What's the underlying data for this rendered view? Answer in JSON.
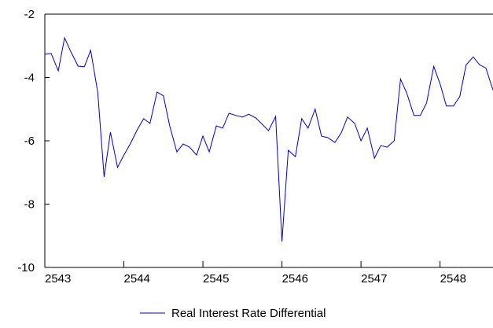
{
  "chart_data": {
    "type": "line",
    "x": [
      2543.0,
      2543.08,
      2543.17,
      2543.25,
      2543.33,
      2543.42,
      2543.5,
      2543.58,
      2543.67,
      2543.75,
      2543.83,
      2543.92,
      2544.0,
      2544.08,
      2544.17,
      2544.25,
      2544.33,
      2544.42,
      2544.5,
      2544.58,
      2544.67,
      2544.75,
      2544.83,
      2544.92,
      2545.0,
      2545.08,
      2545.17,
      2545.25,
      2545.33,
      2545.42,
      2545.5,
      2545.58,
      2545.67,
      2545.75,
      2545.83,
      2545.92,
      2546.0,
      2546.08,
      2546.17,
      2546.25,
      2546.33,
      2546.42,
      2546.5,
      2546.58,
      2546.67,
      2546.75,
      2546.83,
      2546.92,
      2547.0,
      2547.08,
      2547.17,
      2547.25,
      2547.33,
      2547.42,
      2547.5,
      2547.58,
      2547.67,
      2547.75,
      2547.83,
      2547.92,
      2548.0,
      2548.08,
      2548.17,
      2548.25,
      2548.33,
      2548.42,
      2548.5,
      2548.58,
      2548.67
    ],
    "series": [
      {
        "name": "Real Interest Rate Differential",
        "color": "#0000cc",
        "values": [
          -3.27,
          -3.24,
          -3.79,
          -2.75,
          -3.19,
          -3.64,
          -3.66,
          -3.14,
          -4.48,
          -7.14,
          -5.73,
          -6.84,
          -6.45,
          -6.1,
          -5.65,
          -5.3,
          -5.45,
          -4.46,
          -4.58,
          -5.53,
          -6.35,
          -6.1,
          -6.2,
          -6.45,
          -5.85,
          -6.35,
          -5.53,
          -5.6,
          -5.13,
          -5.2,
          -5.25,
          -5.16,
          -5.28,
          -5.48,
          -5.68,
          -5.23,
          -9.18,
          -6.3,
          -6.5,
          -5.3,
          -5.6,
          -5.0,
          -5.85,
          -5.9,
          -6.05,
          -5.75,
          -5.25,
          -5.45,
          -6.0,
          -5.6,
          -6.55,
          -6.15,
          -6.2,
          -6.0,
          -4.05,
          -4.5,
          -5.2,
          -5.2,
          -4.8,
          -3.65,
          -4.2,
          -4.9,
          -4.9,
          -4.6,
          -3.6,
          -3.35,
          -3.6,
          -3.7,
          -4.4
        ]
      }
    ],
    "xlim": [
      2543,
      2548.67
    ],
    "xticks": [
      2543,
      2544,
      2545,
      2546,
      2547,
      2548
    ],
    "ylim": [
      -10,
      -2
    ],
    "yticks": [
      -10,
      -8,
      -6,
      -4,
      -2
    ],
    "legend": "bottom"
  }
}
